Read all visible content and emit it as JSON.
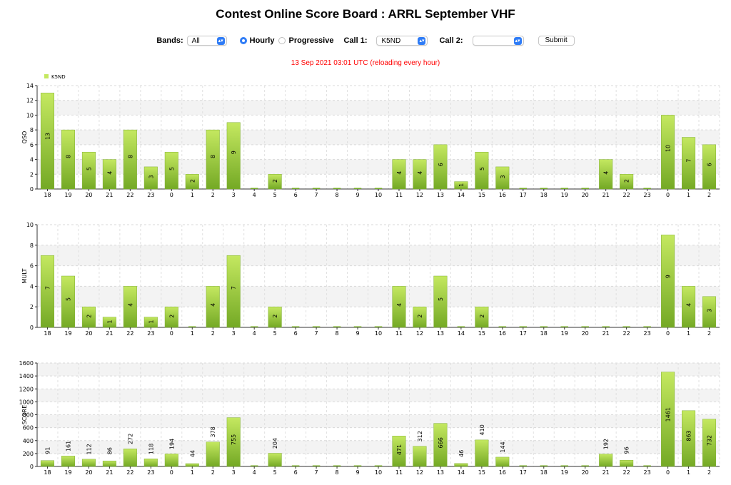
{
  "page": {
    "title": "Contest Online Score Board : ARRL September VHF",
    "status_text": "13 Sep 2021 03:01 UTC   (reloading every hour)"
  },
  "controls": {
    "bands_label": "Bands:",
    "bands_value": "All",
    "hourly_label": "Hourly",
    "hourly_selected": true,
    "progressive_label": "Progressive",
    "call1_label": "Call 1:",
    "call1_value": "K5ND",
    "call2_label": "Call 2:",
    "call2_value": "",
    "submit_label": "Submit"
  },
  "colors": {
    "bar_top": "#c4e860",
    "bar_bottom": "#74a925",
    "status": "#ff0000"
  },
  "chart_data": [
    {
      "type": "bar",
      "ylabel": "QSO",
      "legend": "K5ND",
      "ylim": [
        0,
        14
      ],
      "yticks": [
        0,
        2,
        4,
        6,
        8,
        10,
        12,
        14
      ],
      "categories": [
        "18",
        "19",
        "20",
        "21",
        "22",
        "23",
        "0",
        "1",
        "2",
        "3",
        "4",
        "5",
        "6",
        "7",
        "8",
        "9",
        "10",
        "11",
        "12",
        "13",
        "14",
        "15",
        "16",
        "17",
        "18",
        "19",
        "20",
        "21",
        "22",
        "23",
        "0",
        "1",
        "2"
      ],
      "values": [
        13,
        8,
        5,
        4,
        8,
        3,
        5,
        2,
        8,
        9,
        0,
        2,
        0,
        0,
        0,
        0,
        0,
        4,
        4,
        6,
        1,
        5,
        3,
        0,
        0,
        0,
        0,
        4,
        2,
        0,
        10,
        7,
        6
      ],
      "grid": true
    },
    {
      "type": "bar",
      "ylabel": "MULT",
      "ylim": [
        0,
        10
      ],
      "yticks": [
        0,
        2,
        4,
        6,
        8,
        10
      ],
      "categories": [
        "18",
        "19",
        "20",
        "21",
        "22",
        "23",
        "0",
        "1",
        "2",
        "3",
        "4",
        "5",
        "6",
        "7",
        "8",
        "9",
        "10",
        "11",
        "12",
        "13",
        "14",
        "15",
        "16",
        "17",
        "18",
        "19",
        "20",
        "21",
        "22",
        "23",
        "0",
        "1",
        "2"
      ],
      "values": [
        7,
        5,
        2,
        1,
        4,
        1,
        2,
        0,
        4,
        7,
        0,
        2,
        0,
        0,
        0,
        0,
        0,
        4,
        2,
        5,
        0,
        2,
        0,
        0,
        0,
        0,
        0,
        0,
        0,
        0,
        9,
        4,
        3
      ],
      "grid": true
    },
    {
      "type": "bar",
      "ylabel": "SCORE",
      "ylim": [
        0,
        1600
      ],
      "yticks": [
        0,
        200,
        400,
        600,
        800,
        1000,
        1200,
        1400,
        1600
      ],
      "categories": [
        "18",
        "19",
        "20",
        "21",
        "22",
        "23",
        "0",
        "1",
        "2",
        "3",
        "4",
        "5",
        "6",
        "7",
        "8",
        "9",
        "10",
        "11",
        "12",
        "13",
        "14",
        "15",
        "16",
        "17",
        "18",
        "19",
        "20",
        "21",
        "22",
        "23",
        "0",
        "1",
        "2"
      ],
      "values": [
        91,
        161,
        112,
        86,
        272,
        118,
        194,
        44,
        378,
        755,
        0,
        204,
        0,
        0,
        0,
        0,
        0,
        471,
        312,
        666,
        46,
        410,
        144,
        0,
        0,
        0,
        0,
        192,
        96,
        0,
        1461,
        863,
        732
      ],
      "grid": true
    }
  ]
}
